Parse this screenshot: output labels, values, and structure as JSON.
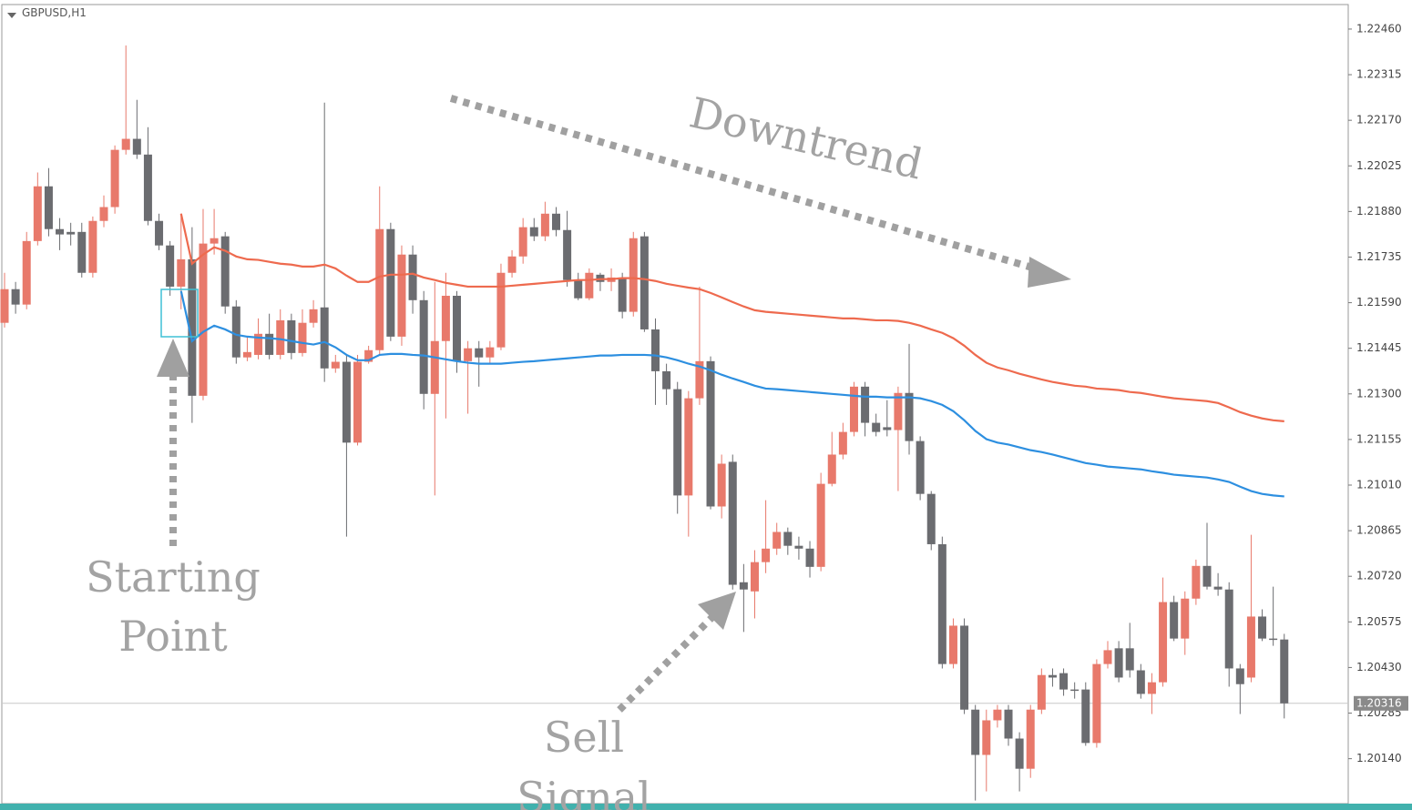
{
  "chart_data": {
    "type": "candlestick",
    "title": "GBPUSD,H1",
    "up_color": "#e8796b",
    "down_color": "#6b6c70",
    "open": [
      1.21526,
      1.21633,
      1.21584,
      1.21786,
      1.2196,
      1.21824,
      1.21815,
      1.21815,
      1.21685,
      1.2185,
      1.21894,
      1.22076,
      1.22111,
      1.22061,
      1.2185,
      1.21772,
      1.21641,
      1.21728,
      1.21294,
      1.21778,
      1.21801,
      1.21578,
      1.21416,
      1.21424,
      1.21491,
      1.21424,
      1.21534,
      1.2143,
      1.21526,
      1.21575,
      1.21381,
      1.21402,
      1.21145,
      1.21402,
      1.21439,
      1.21824,
      1.21482,
      1.21743,
      1.21598,
      1.213,
      1.21468,
      1.21612,
      1.21404,
      1.21445,
      1.21416,
      1.21448,
      1.21685,
      1.21737,
      1.2183,
      1.21801,
      1.21873,
      1.21821,
      1.21662,
      1.21604,
      1.21679,
      1.21656,
      1.2167,
      1.21561,
      1.21801,
      1.21505,
      1.21372,
      1.21315,
      1.20977,
      1.21286,
      1.21404,
      1.20942,
      1.21084,
      1.20701,
      1.20672,
      1.20765,
      1.20808,
      1.20861,
      1.20817,
      1.20808,
      1.2075,
      1.21014,
      1.21107,
      1.21179,
      1.21323,
      1.21208,
      1.21194,
      1.21185,
      1.21303,
      1.2115,
      1.20982,
      1.20822,
      1.20441,
      1.20563,
      1.20296,
      1.20152,
      1.20262,
      1.20296,
      1.20204,
      1.20108,
      1.20296,
      1.20406,
      1.20412,
      1.2036,
      1.2036,
      1.2019,
      1.20441,
      1.20491,
      1.20491,
      1.20421,
      1.20346,
      1.20383,
      1.20638,
      1.20522,
      1.20649,
      1.20753,
      1.20687,
      1.20678,
      1.20427,
      1.20398,
      1.20592,
      1.20522,
      1.20519
    ],
    "high": [
      1.21685,
      1.21656,
      1.21815,
      1.22004,
      1.22018,
      1.21859,
      1.21844,
      1.21844,
      1.21864,
      1.21931,
      1.2209,
      1.22408,
      1.22235,
      1.22148,
      1.21873,
      1.21786,
      1.21873,
      1.2183,
      1.21888,
      1.21888,
      1.21815,
      1.21598,
      1.21482,
      1.2154,
      1.21555,
      1.21569,
      1.21555,
      1.21569,
      1.21598,
      1.22226,
      1.21424,
      1.21424,
      1.21424,
      1.21453,
      1.2196,
      1.21844,
      1.21772,
      1.21772,
      1.21627,
      1.21656,
      1.21685,
      1.21627,
      1.21468,
      1.21468,
      1.21468,
      1.21714,
      1.21757,
      1.21859,
      1.21859,
      1.21911,
      1.21894,
      1.21882,
      1.21685,
      1.21699,
      1.21685,
      1.21699,
      1.21685,
      1.21815,
      1.21815,
      1.2154,
      1.21396,
      1.21338,
      1.21309,
      1.21641,
      1.21419,
      1.21107,
      1.21107,
      1.20759,
      1.20803,
      1.20962,
      1.2089,
      1.20875,
      1.20846,
      1.20832,
      1.21049,
      1.21179,
      1.21208,
      1.21338,
      1.21338,
      1.21237,
      1.2128,
      1.21323,
      1.21459,
      1.21165,
      1.20991,
      1.20846,
      1.20586,
      1.20586,
      1.20311,
      1.20296,
      1.20311,
      1.20311,
      1.20224,
      1.20311,
      1.20427,
      1.20427,
      1.20427,
      1.20383,
      1.20383,
      1.20456,
      1.20514,
      1.20514,
      1.20572,
      1.20441,
      1.20412,
      1.20716,
      1.20658,
      1.20672,
      1.20773,
      1.2089,
      1.2073,
      1.20701,
      1.20441,
      1.20852,
      1.20615,
      1.20687,
      1.20537
    ],
    "low": [
      1.21511,
      1.21555,
      1.21569,
      1.21772,
      1.21801,
      1.21757,
      1.21772,
      1.2167,
      1.2167,
      1.2183,
      1.21873,
      1.22061,
      1.22047,
      1.21836,
      1.21757,
      1.21612,
      1.21569,
      1.21208,
      1.2128,
      1.21743,
      1.21555,
      1.21396,
      1.21404,
      1.2141,
      1.2141,
      1.2141,
      1.2141,
      1.21419,
      1.21511,
      1.21338,
      1.21367,
      1.20846,
      1.21136,
      1.21396,
      1.21424,
      1.21468,
      1.21453,
      1.21555,
      1.21251,
      1.20977,
      1.21222,
      1.21367,
      1.21237,
      1.21323,
      1.21396,
      1.21439,
      1.2167,
      1.21714,
      1.21786,
      1.21786,
      1.21801,
      1.21641,
      1.21598,
      1.21598,
      1.21627,
      1.21627,
      1.2154,
      1.21546,
      1.21497,
      1.21265,
      1.21265,
      1.20919,
      1.20846,
      1.21265,
      1.20933,
      1.20904,
      1.20678,
      1.20543,
      1.20586,
      1.2073,
      1.20788,
      1.20788,
      1.20773,
      1.20716,
      1.20736,
      1.21006,
      1.21092,
      1.21165,
      1.21165,
      1.21165,
      1.21165,
      1.20991,
      1.21107,
      1.20962,
      1.20803,
      1.20427,
      1.20427,
      1.20282,
      1.20007,
      1.20036,
      1.20239,
      1.20181,
      1.20036,
      1.20079,
      1.20282,
      1.20369,
      1.2034,
      1.20331,
      1.20181,
      1.20175,
      1.20427,
      1.20383,
      1.20398,
      1.20331,
      1.20282,
      1.20369,
      1.20514,
      1.2047,
      1.20629,
      1.20678,
      1.20658,
      1.20369,
      1.20282,
      1.20383,
      1.20514,
      1.20499,
      1.20268
    ],
    "close": [
      1.21633,
      1.21584,
      1.21786,
      1.2196,
      1.21824,
      1.21807,
      1.21807,
      1.21685,
      1.2185,
      1.21894,
      1.22076,
      1.22111,
      1.22061,
      1.2185,
      1.21772,
      1.21641,
      1.21728,
      1.21294,
      1.21778,
      1.21795,
      1.21578,
      1.21416,
      1.21433,
      1.21491,
      1.21424,
      1.21534,
      1.2143,
      1.21526,
      1.21569,
      1.21381,
      1.21402,
      1.21145,
      1.21402,
      1.21439,
      1.21824,
      1.21482,
      1.21743,
      1.21598,
      1.213,
      1.21468,
      1.21612,
      1.21404,
      1.21445,
      1.21416,
      1.21448,
      1.21685,
      1.21737,
      1.2183,
      1.21801,
      1.21873,
      1.21821,
      1.21662,
      1.21604,
      1.21685,
      1.21656,
      1.2167,
      1.21561,
      1.21795,
      1.21505,
      1.21372,
      1.21315,
      1.20977,
      1.21286,
      1.21404,
      1.20942,
      1.21078,
      1.20693,
      1.20678,
      1.20765,
      1.20808,
      1.20861,
      1.20817,
      1.20808,
      1.2075,
      1.21014,
      1.21107,
      1.21179,
      1.21323,
      1.21208,
      1.21179,
      1.21185,
      1.21303,
      1.2115,
      1.20982,
      1.20822,
      1.20441,
      1.20563,
      1.20296,
      1.20152,
      1.20262,
      1.20296,
      1.20204,
      1.20108,
      1.20296,
      1.20406,
      1.20398,
      1.2036,
      1.20357,
      1.2019,
      1.20441,
      1.20485,
      1.20398,
      1.20421,
      1.20346,
      1.20383,
      1.20638,
      1.20522,
      1.20649,
      1.20753,
      1.20687,
      1.20678,
      1.20427,
      1.20377,
      1.20592,
      1.20522,
      1.20519,
      1.20316
    ],
    "moving_averages": [
      {
        "color": "#ee6a4e",
        "values": [
          null,
          null,
          null,
          null,
          null,
          null,
          null,
          null,
          null,
          null,
          null,
          null,
          null,
          null,
          null,
          null,
          1.21873,
          1.21714,
          1.21743,
          1.21766,
          1.21755,
          1.21737,
          1.21728,
          1.21726,
          1.2172,
          1.21714,
          1.21711,
          1.21705,
          1.21705,
          1.21711,
          1.21699,
          1.21676,
          1.21656,
          1.21656,
          1.21673,
          1.21679,
          1.21679,
          1.21682,
          1.2167,
          1.21662,
          1.21653,
          1.21647,
          1.21641,
          1.21641,
          1.21641,
          1.21641,
          1.21644,
          1.21647,
          1.2165,
          1.21653,
          1.21656,
          1.21659,
          1.21662,
          1.21662,
          1.21665,
          1.21665,
          1.21668,
          1.21668,
          1.21665,
          1.21659,
          1.2165,
          1.21644,
          1.21638,
          1.21633,
          1.21621,
          1.21607,
          1.21592,
          1.21578,
          1.21566,
          1.21561,
          1.21558,
          1.21555,
          1.21552,
          1.21549,
          1.21546,
          1.21543,
          1.2154,
          1.2154,
          1.21537,
          1.21534,
          1.21534,
          1.21532,
          1.21526,
          1.21517,
          1.21505,
          1.21494,
          1.21477,
          1.21453,
          1.21424,
          1.21399,
          1.21384,
          1.21375,
          1.21364,
          1.21355,
          1.21346,
          1.21338,
          1.21332,
          1.21326,
          1.21323,
          1.21317,
          1.21315,
          1.21312,
          1.21306,
          1.21303,
          1.21297,
          1.21291,
          1.21286,
          1.21283,
          1.2128,
          1.21277,
          1.21271,
          1.21257,
          1.21242,
          1.21231,
          1.21222,
          1.21216,
          1.21213
        ]
      },
      {
        "color": "#2d8fe0",
        "values": [
          null,
          null,
          null,
          null,
          null,
          null,
          null,
          null,
          null,
          null,
          null,
          null,
          null,
          null,
          null,
          null,
          1.21627,
          1.21468,
          1.21497,
          1.21517,
          1.21505,
          1.21488,
          1.21482,
          1.21479,
          1.21477,
          1.21474,
          1.21468,
          1.21462,
          1.21457,
          1.21465,
          1.21448,
          1.21424,
          1.21407,
          1.21407,
          1.21424,
          1.21427,
          1.21427,
          1.21424,
          1.21422,
          1.21416,
          1.2141,
          1.21404,
          1.21399,
          1.21396,
          1.21396,
          1.21396,
          1.21399,
          1.21402,
          1.21404,
          1.21407,
          1.2141,
          1.21413,
          1.21416,
          1.21419,
          1.21422,
          1.21422,
          1.21424,
          1.21424,
          1.21424,
          1.21422,
          1.21416,
          1.21407,
          1.21396,
          1.21387,
          1.21375,
          1.21361,
          1.21349,
          1.21338,
          1.21326,
          1.21317,
          1.21315,
          1.21312,
          1.21309,
          1.21306,
          1.21303,
          1.213,
          1.21297,
          1.21294,
          1.21291,
          1.21291,
          1.21289,
          1.21289,
          1.21289,
          1.21286,
          1.21277,
          1.21265,
          1.21245,
          1.21216,
          1.21182,
          1.21156,
          1.21145,
          1.21139,
          1.2113,
          1.21121,
          1.21115,
          1.21107,
          1.21098,
          1.21089,
          1.2108,
          1.21075,
          1.21069,
          1.21066,
          1.21063,
          1.2106,
          1.21054,
          1.21049,
          1.21043,
          1.2104,
          1.21037,
          1.21034,
          1.21028,
          1.2102,
          1.21005,
          1.20991,
          1.20982,
          1.20977,
          1.20974
        ]
      }
    ],
    "ylim": [
      1.2,
      1.22538
    ],
    "yticks": [
      {
        "value": 1.2246,
        "label": "1.22460"
      },
      {
        "value": 1.22315,
        "label": "1.22315"
      },
      {
        "value": 1.2217,
        "label": "1.22170"
      },
      {
        "value": 1.22025,
        "label": "1.22025"
      },
      {
        "value": 1.2188,
        "label": "1.21880"
      },
      {
        "value": 1.21735,
        "label": "1.21735"
      },
      {
        "value": 1.2159,
        "label": "1.21590"
      },
      {
        "value": 1.21445,
        "label": "1.21445"
      },
      {
        "value": 1.213,
        "label": "1.21300"
      },
      {
        "value": 1.21155,
        "label": "1.21155"
      },
      {
        "value": 1.2101,
        "label": "1.21010"
      },
      {
        "value": 1.20865,
        "label": "1.20865"
      },
      {
        "value": 1.2072,
        "label": "1.20720"
      },
      {
        "value": 1.20575,
        "label": "1.20575"
      },
      {
        "value": 1.2043,
        "label": "1.20430"
      },
      {
        "value": 1.20285,
        "label": "1.20285"
      },
      {
        "value": 1.2014,
        "label": "1.20140"
      }
    ],
    "current_price": {
      "value": 1.20316,
      "label": "1.20316"
    },
    "annotations": {
      "downtrend": "Downtrend",
      "starting_point": [
        "Starting",
        "Point"
      ],
      "sell_signal": [
        "Sell",
        "Signal"
      ]
    }
  }
}
